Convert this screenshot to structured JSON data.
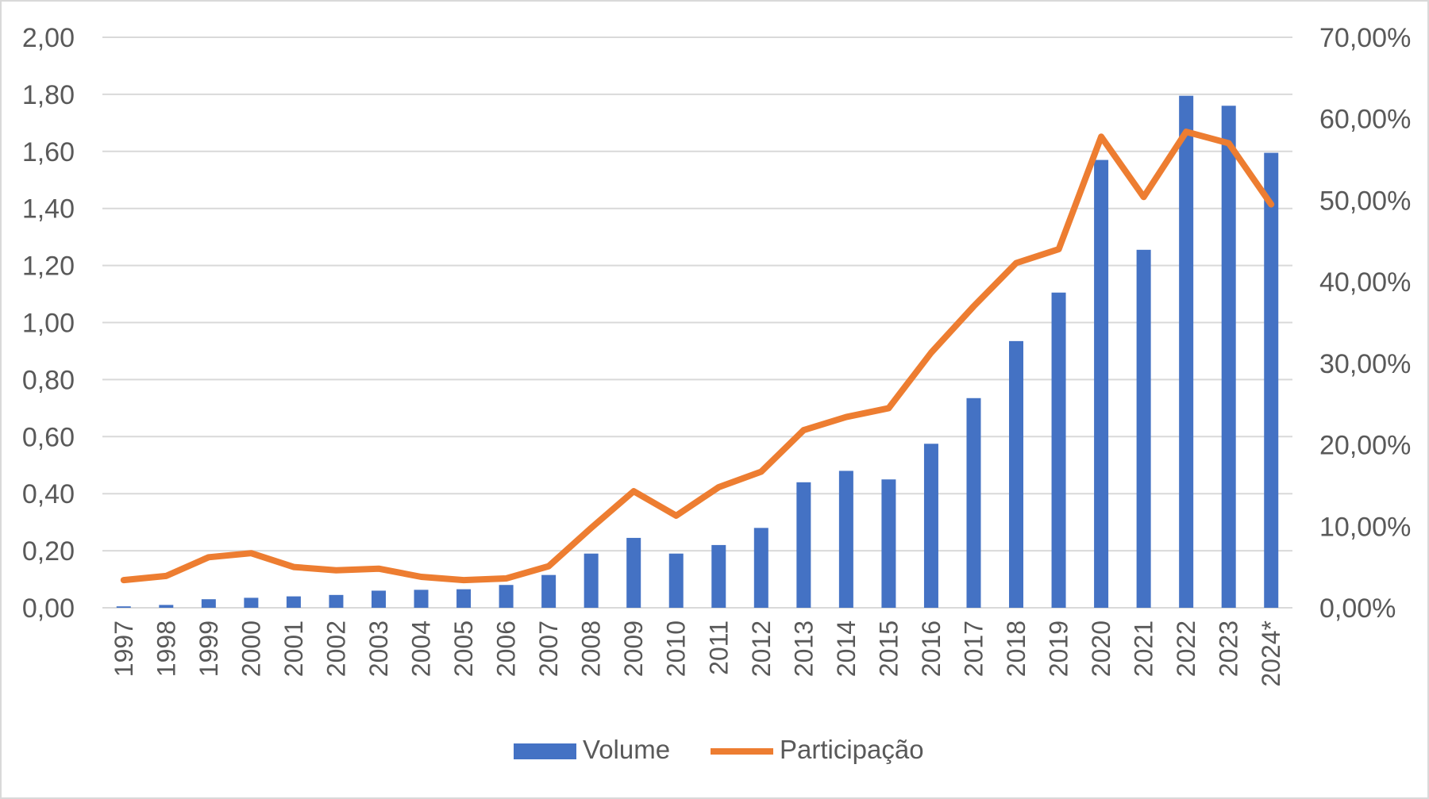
{
  "chart_data": {
    "type": "bar+line",
    "categories": [
      "1997",
      "1998",
      "1999",
      "2000",
      "2001",
      "2002",
      "2003",
      "2004",
      "2005",
      "2006",
      "2007",
      "2008",
      "2009",
      "2010",
      "2011",
      "2012",
      "2013",
      "2014",
      "2015",
      "2016",
      "2017",
      "2018",
      "2019",
      "2020",
      "2021",
      "2022",
      "2023",
      "2024*"
    ],
    "series": [
      {
        "name": "Volume",
        "type": "bar",
        "axis": "left",
        "color": "#4472C4",
        "values": [
          0.005,
          0.01,
          0.03,
          0.035,
          0.04,
          0.045,
          0.06,
          0.063,
          0.065,
          0.08,
          0.115,
          0.19,
          0.245,
          0.19,
          0.22,
          0.28,
          0.44,
          0.48,
          0.45,
          0.575,
          0.735,
          0.935,
          1.105,
          1.57,
          1.255,
          1.795,
          1.76,
          1.595
        ]
      },
      {
        "name": "Participação",
        "type": "line",
        "axis": "right",
        "color": "#ED7D31",
        "values": [
          3.4,
          3.9,
          6.2,
          6.7,
          5.0,
          4.6,
          4.8,
          3.8,
          3.4,
          3.6,
          5.1,
          9.8,
          14.3,
          11.3,
          14.8,
          16.7,
          21.8,
          23.4,
          24.5,
          31.3,
          37.0,
          42.3,
          44.0,
          57.8,
          50.4,
          58.4,
          57.0,
          49.5
        ]
      }
    ],
    "y_left": {
      "ylim": [
        0,
        2
      ],
      "ticks": [
        "0,00",
        "0,20",
        "0,40",
        "0,60",
        "0,80",
        "1,00",
        "1,20",
        "1,40",
        "1,60",
        "1,80",
        "2,00"
      ]
    },
    "y_right": {
      "ylim": [
        0,
        70
      ],
      "ticks": [
        "0,00%",
        "10,00%",
        "20,00%",
        "30,00%",
        "40,00%",
        "50,00%",
        "60,00%",
        "70,00%"
      ]
    },
    "grid": true,
    "legend": "bottom-center",
    "colors": {
      "grid": "#d9d9d9",
      "text": "#595959"
    }
  }
}
